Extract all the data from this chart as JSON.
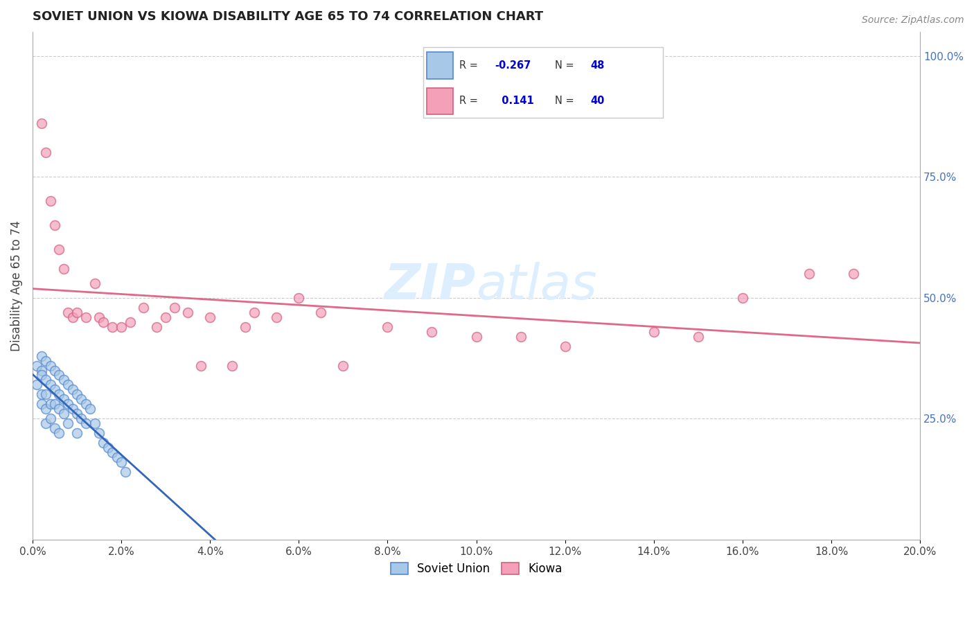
{
  "title": "SOVIET UNION VS KIOWA DISABILITY AGE 65 TO 74 CORRELATION CHART",
  "source_text": "Source: ZipAtlas.com",
  "ylabel": "Disability Age 65 to 74",
  "xlim": [
    0.0,
    0.2
  ],
  "ylim": [
    0.0,
    1.05
  ],
  "right_yticks": [
    0.25,
    0.5,
    0.75,
    1.0
  ],
  "right_yticklabels": [
    "25.0%",
    "50.0%",
    "75.0%",
    "100.0%"
  ],
  "xticklabels": [
    "0.0%",
    "2.0%",
    "4.0%",
    "6.0%",
    "8.0%",
    "10.0%",
    "12.0%",
    "14.0%",
    "16.0%",
    "18.0%",
    "20.0%"
  ],
  "xticks": [
    0.0,
    0.02,
    0.04,
    0.06,
    0.08,
    0.1,
    0.12,
    0.14,
    0.16,
    0.18,
    0.2
  ],
  "soviet_R": -0.267,
  "soviet_N": 48,
  "kiowa_R": 0.141,
  "kiowa_N": 40,
  "soviet_color": "#a8c8e8",
  "kiowa_color": "#f4a0b8",
  "soviet_edge_color": "#5588cc",
  "kiowa_edge_color": "#d06080",
  "trend_line_color_soviet": "#3366bb",
  "trend_line_color_kiowa": "#e06888",
  "background_color": "#ffffff",
  "grid_color": "#cccccc",
  "watermark_color": "#ddeeff",
  "soviet_scatter_x": [
    0.001,
    0.001,
    0.002,
    0.002,
    0.002,
    0.002,
    0.002,
    0.003,
    0.003,
    0.003,
    0.003,
    0.003,
    0.004,
    0.004,
    0.004,
    0.004,
    0.005,
    0.005,
    0.005,
    0.005,
    0.006,
    0.006,
    0.006,
    0.006,
    0.007,
    0.007,
    0.007,
    0.008,
    0.008,
    0.008,
    0.009,
    0.009,
    0.01,
    0.01,
    0.01,
    0.011,
    0.011,
    0.012,
    0.012,
    0.013,
    0.014,
    0.015,
    0.016,
    0.017,
    0.018,
    0.019,
    0.02,
    0.021
  ],
  "soviet_scatter_y": [
    0.36,
    0.32,
    0.38,
    0.35,
    0.3,
    0.28,
    0.34,
    0.37,
    0.33,
    0.3,
    0.27,
    0.24,
    0.36,
    0.32,
    0.28,
    0.25,
    0.35,
    0.31,
    0.28,
    0.23,
    0.34,
    0.3,
    0.27,
    0.22,
    0.33,
    0.29,
    0.26,
    0.32,
    0.28,
    0.24,
    0.31,
    0.27,
    0.3,
    0.26,
    0.22,
    0.29,
    0.25,
    0.28,
    0.24,
    0.27,
    0.24,
    0.22,
    0.2,
    0.19,
    0.18,
    0.17,
    0.16,
    0.14
  ],
  "kiowa_scatter_x": [
    0.002,
    0.003,
    0.004,
    0.005,
    0.006,
    0.007,
    0.008,
    0.009,
    0.01,
    0.012,
    0.014,
    0.015,
    0.016,
    0.018,
    0.02,
    0.022,
    0.025,
    0.028,
    0.03,
    0.032,
    0.035,
    0.038,
    0.04,
    0.045,
    0.048,
    0.05,
    0.055,
    0.06,
    0.065,
    0.07,
    0.08,
    0.09,
    0.1,
    0.11,
    0.12,
    0.14,
    0.15,
    0.16,
    0.175,
    0.185
  ],
  "kiowa_scatter_y": [
    0.86,
    0.8,
    0.7,
    0.65,
    0.6,
    0.56,
    0.47,
    0.46,
    0.47,
    0.46,
    0.53,
    0.46,
    0.45,
    0.44,
    0.44,
    0.45,
    0.48,
    0.44,
    0.46,
    0.48,
    0.47,
    0.36,
    0.46,
    0.36,
    0.44,
    0.47,
    0.46,
    0.5,
    0.47,
    0.36,
    0.44,
    0.43,
    0.42,
    0.42,
    0.4,
    0.43,
    0.42,
    0.5,
    0.55,
    0.55
  ]
}
